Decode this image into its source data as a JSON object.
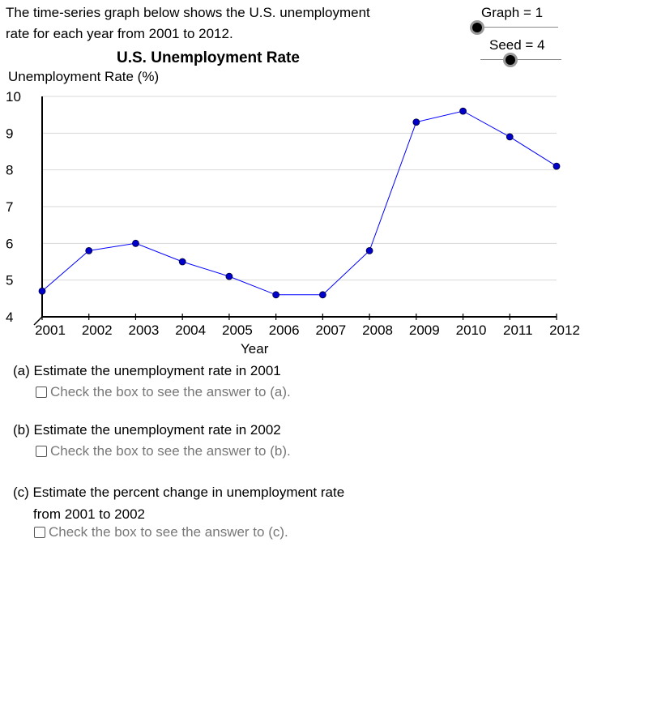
{
  "intro": {
    "line1": "The time-series graph below shows the U.S. unemployment",
    "line2": "rate for each year from 2001 to 2012."
  },
  "sliders": {
    "graph_label": "Graph = 1",
    "seed_label": "Seed = 4"
  },
  "chart_data": {
    "type": "line",
    "title": "U.S. Unemployment Rate",
    "ylabel": "Unemployment Rate (%)",
    "xlabel": "Year",
    "x": [
      2001,
      2002,
      2003,
      2004,
      2005,
      2006,
      2007,
      2008,
      2009,
      2010,
      2011,
      2012
    ],
    "y": [
      4.7,
      5.8,
      6.0,
      5.5,
      5.1,
      4.6,
      4.6,
      5.8,
      9.3,
      9.6,
      8.9,
      8.1
    ],
    "ylim": [
      4,
      10
    ],
    "yticks": [
      4,
      5,
      6,
      7,
      8,
      9,
      10
    ],
    "grid": true,
    "line_color": "#0000ff",
    "point_color": "#0000cc"
  },
  "questions": {
    "a_text": "(a) Estimate the unemployment rate in 2001",
    "a_check": "Check the box to see the answer to (a).",
    "b_text": "(b) Estimate the unemployment rate in 2002",
    "b_check": "Check the box to see the answer to (b).",
    "c_text_line1": "(c) Estimate the percent change in unemployment rate",
    "c_text_line2": "from 2001 to 2002",
    "c_check": "Check the box to see the answer to (c)."
  }
}
